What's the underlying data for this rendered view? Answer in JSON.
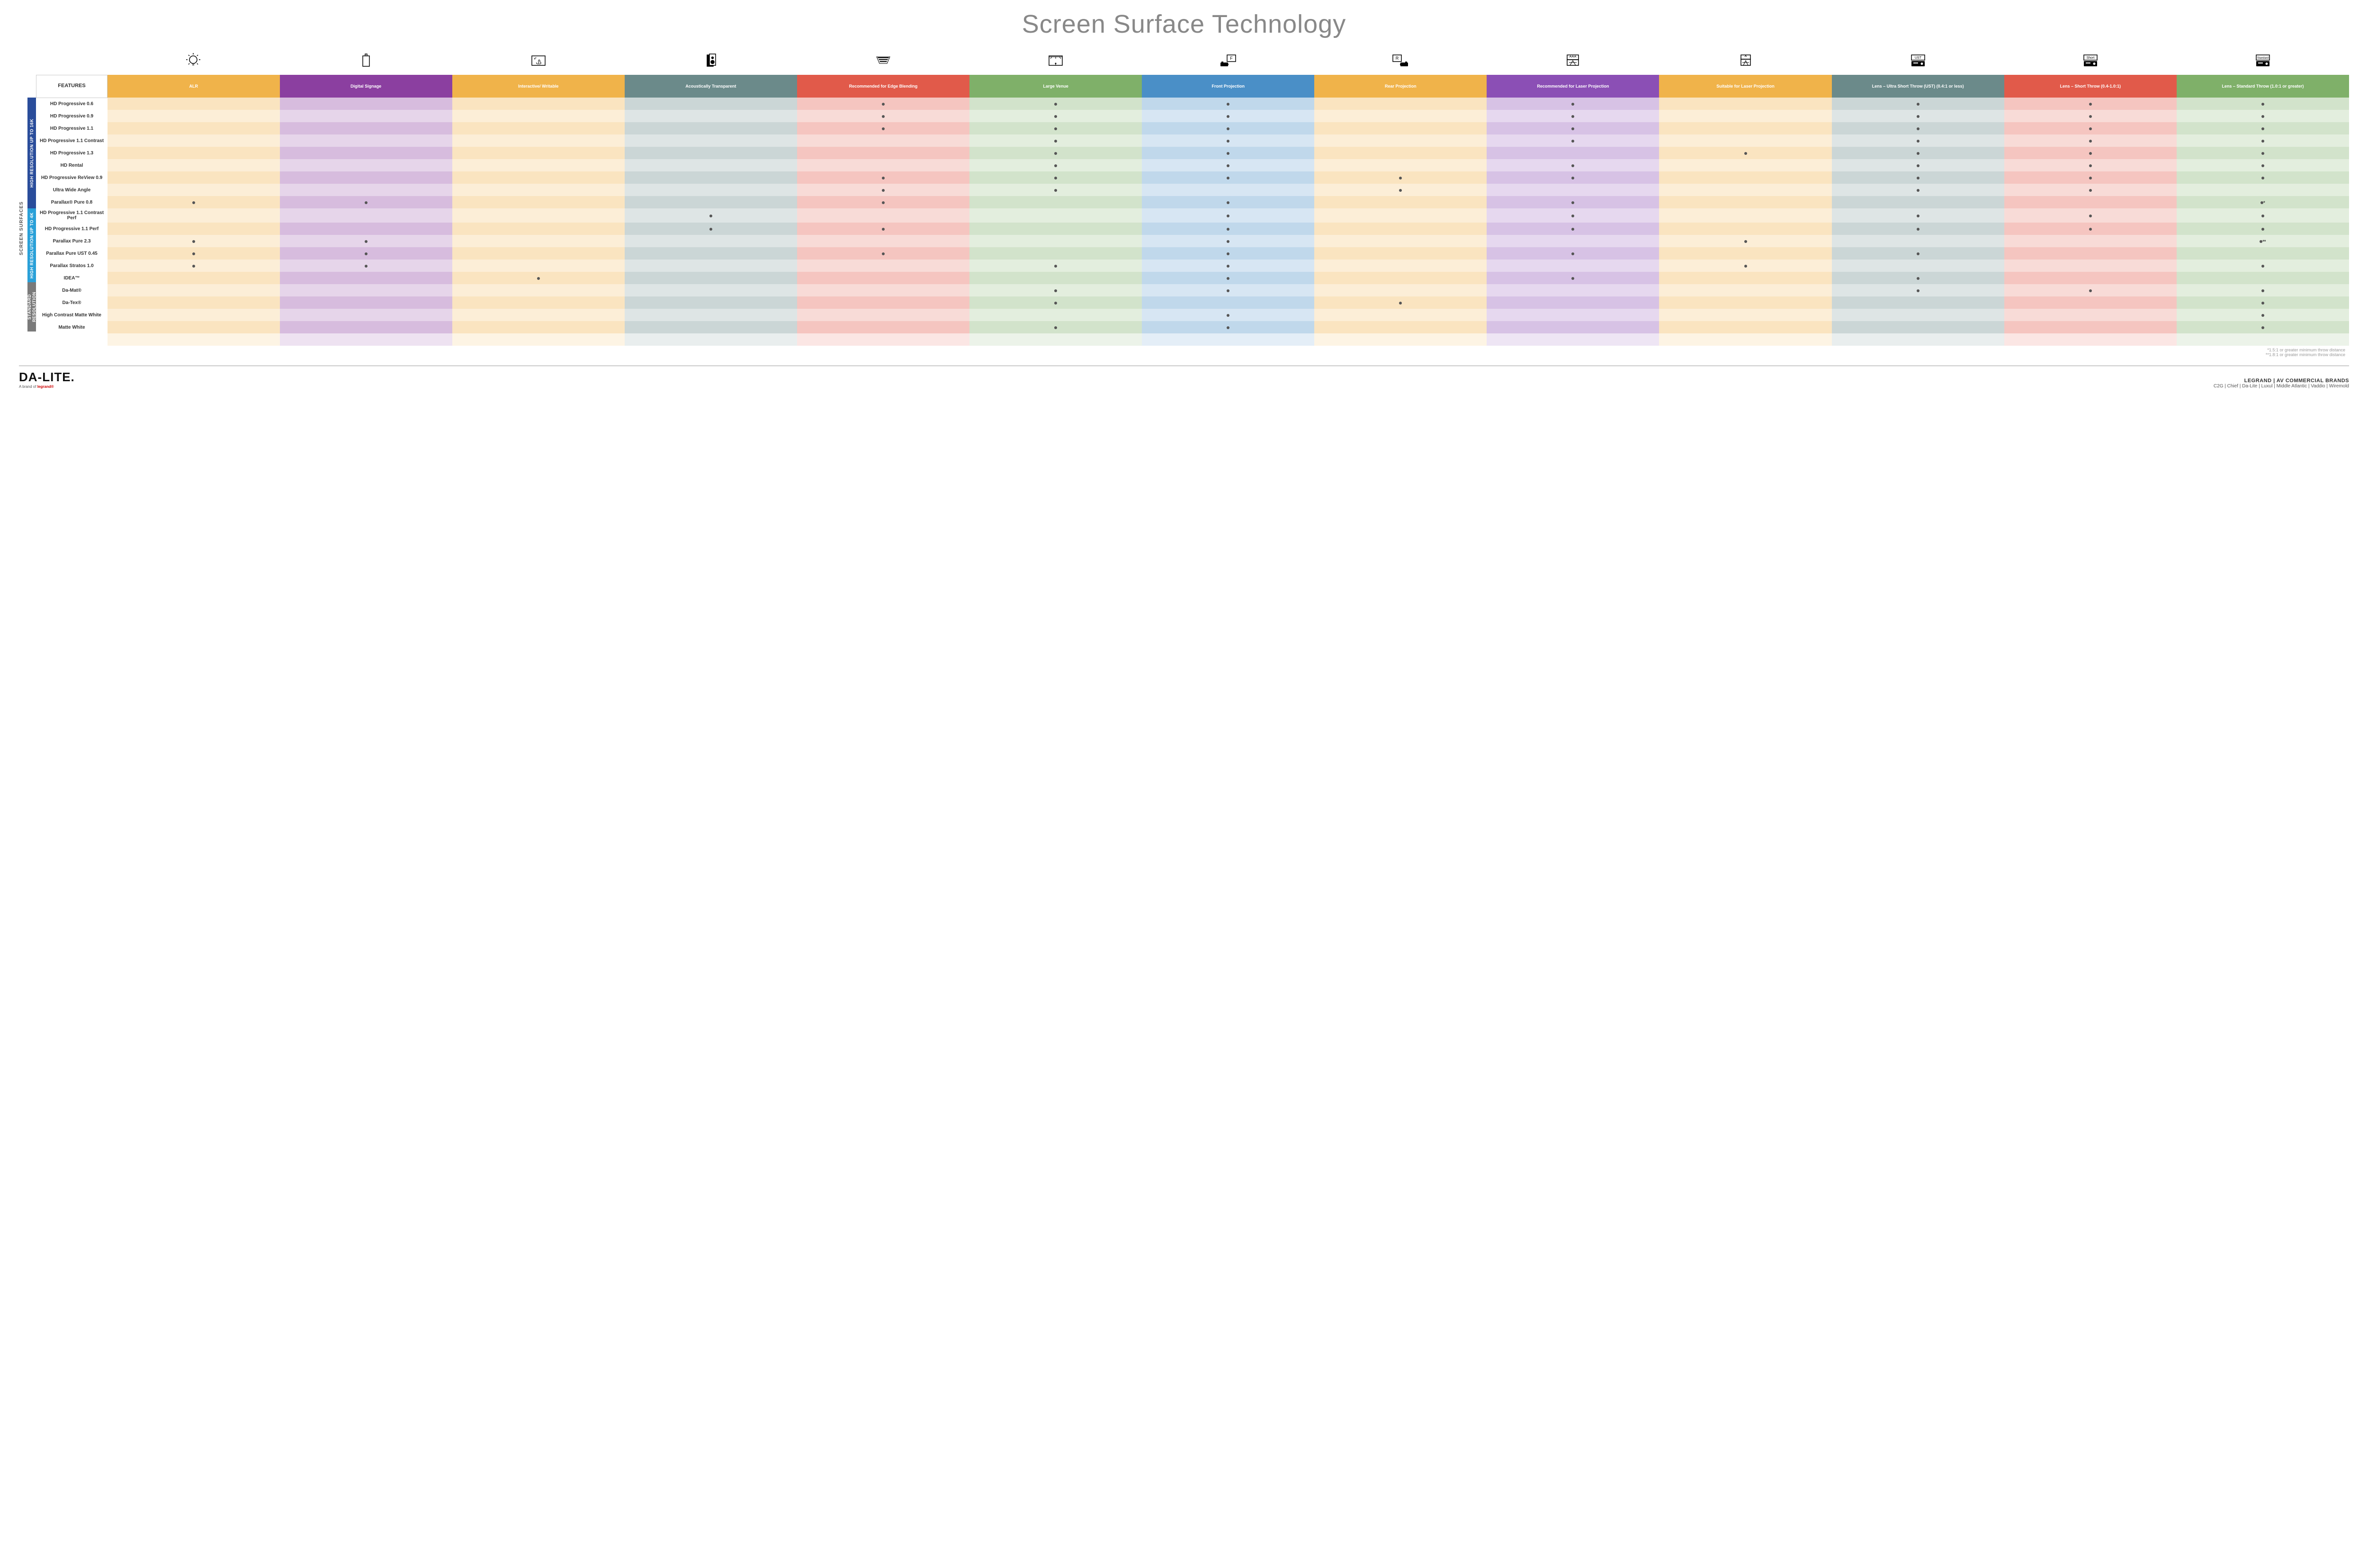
{
  "title": "Screen Surface Technology",
  "colors": {
    "columns": [
      "#f0b34a",
      "#8b3fa0",
      "#f0b34a",
      "#6b8a8a",
      "#e15a4a",
      "#7fb069",
      "#4a8fc7",
      "#f0b34a",
      "#8b4fb5",
      "#f0b34a",
      "#6b8a8a",
      "#e15a4a",
      "#7fb069"
    ],
    "groups": [
      "#2a4d9b",
      "#2aa0d8",
      "#7a7a7a"
    ],
    "tint_alpha_even": 0.35,
    "tint_alpha_odd": 0.22,
    "dot": "#555555"
  },
  "columns": [
    {
      "key": "alr",
      "label": "ALR"
    },
    {
      "key": "signage",
      "label": "Digital Signage"
    },
    {
      "key": "writable",
      "label": "Interactive/ Writable"
    },
    {
      "key": "acoustic",
      "label": "Acoustically Transparent"
    },
    {
      "key": "edge",
      "label": "Recommended for Edge Blending"
    },
    {
      "key": "large",
      "label": "Large Venue"
    },
    {
      "key": "front",
      "label": "Front Projection"
    },
    {
      "key": "rear",
      "label": "Rear Projection"
    },
    {
      "key": "laser_rec",
      "label": "Recommended for Laser Projection"
    },
    {
      "key": "laser_suit",
      "label": "Suitable for Laser Projection"
    },
    {
      "key": "ust",
      "label": "Lens – Ultra Short Throw (UST) (0.4:1 or less)"
    },
    {
      "key": "short",
      "label": "Lens – Short Throw (0.4-1.0:1)"
    },
    {
      "key": "std",
      "label": "Lens – Standard Throw (1.0:1 or greater)"
    }
  ],
  "features_heading": "FEATURES",
  "side_label": "SCREEN SURFACES",
  "groups": [
    {
      "label": "HIGH RESOLUTION UP TO 16K",
      "rows": 9
    },
    {
      "label": "HIGH RESOLUTION UP TO 4K",
      "rows": 6
    },
    {
      "label": "STANDARD RESOLUTION",
      "rows": 4
    }
  ],
  "rows": [
    {
      "label": "HD Progressive 0.6",
      "dots": {
        "edge": "•",
        "large": "•",
        "front": "•",
        "laser_rec": "•",
        "ust": "•",
        "short": "•",
        "std": "•"
      }
    },
    {
      "label": "HD Progressive 0.9",
      "dots": {
        "edge": "•",
        "large": "•",
        "front": "•",
        "laser_rec": "•",
        "ust": "•",
        "short": "•",
        "std": "•"
      }
    },
    {
      "label": "HD Progressive 1.1",
      "dots": {
        "edge": "•",
        "large": "•",
        "front": "•",
        "laser_rec": "•",
        "ust": "•",
        "short": "•",
        "std": "•"
      }
    },
    {
      "label": "HD Progressive 1.1 Contrast",
      "dots": {
        "large": "•",
        "front": "•",
        "laser_rec": "•",
        "ust": "•",
        "short": "•",
        "std": "•"
      }
    },
    {
      "label": "HD Progressive 1.3",
      "dots": {
        "large": "•",
        "front": "•",
        "laser_suit": "•",
        "ust": "•",
        "short": "•",
        "std": "•"
      }
    },
    {
      "label": "HD Rental",
      "dots": {
        "large": "•",
        "front": "•",
        "laser_rec": "•",
        "ust": "•",
        "short": "•",
        "std": "•"
      }
    },
    {
      "label": "HD Progressive ReView 0.9",
      "dots": {
        "edge": "•",
        "large": "•",
        "front": "•",
        "rear": "•",
        "laser_rec": "•",
        "ust": "•",
        "short": "•",
        "std": "•"
      }
    },
    {
      "label": "Ultra Wide Angle",
      "dots": {
        "edge": "•",
        "large": "•",
        "rear": "•",
        "ust": "•",
        "short": "•"
      }
    },
    {
      "label": "Parallax® Pure 0.8",
      "dots": {
        "alr": "•",
        "signage": "•",
        "edge": "•",
        "front": "•",
        "laser_rec": "•",
        "std": "•*"
      }
    },
    {
      "label": "HD Progressive 1.1 Contrast Perf",
      "dots": {
        "acoustic": "•",
        "front": "•",
        "laser_rec": "•",
        "ust": "•",
        "short": "•",
        "std": "•"
      }
    },
    {
      "label": "HD Progressive 1.1 Perf",
      "dots": {
        "acoustic": "•",
        "edge": "•",
        "front": "•",
        "laser_rec": "•",
        "ust": "•",
        "short": "•",
        "std": "•"
      }
    },
    {
      "label": "Parallax Pure 2.3",
      "dots": {
        "alr": "•",
        "signage": "•",
        "front": "•",
        "laser_suit": "•",
        "std": "•**"
      }
    },
    {
      "label": "Parallax Pure UST 0.45",
      "dots": {
        "alr": "•",
        "signage": "•",
        "edge": "•",
        "front": "•",
        "laser_rec": "•",
        "ust": "•"
      }
    },
    {
      "label": "Parallax Stratos 1.0",
      "dots": {
        "alr": "•",
        "signage": "•",
        "large": "•",
        "front": "•",
        "laser_suit": "•",
        "std": "•"
      }
    },
    {
      "label": "IDEA™",
      "dots": {
        "writable": "•",
        "front": "•",
        "laser_rec": "•",
        "ust": "•"
      }
    },
    {
      "label": "Da-Mat®",
      "dots": {
        "large": "•",
        "front": "•",
        "ust": "•",
        "short": "•",
        "std": "•"
      }
    },
    {
      "label": "Da-Tex®",
      "dots": {
        "large": "•",
        "rear": "•",
        "std": "•"
      }
    },
    {
      "label": "High Contrast Matte White",
      "dots": {
        "front": "•",
        "std": "•"
      }
    },
    {
      "label": "Matte White",
      "dots": {
        "large": "•",
        "front": "•",
        "std": "•"
      }
    }
  ],
  "footnotes": [
    "*1.5:1 or greater minimum throw distance",
    "**1.8:1 or greater minimum throw distance"
  ],
  "footer": {
    "logo_main": "DA-LITE.",
    "logo_sub_pre": "A brand of ",
    "logo_sub_brand": "legrand®",
    "brands_top": "LEGRAND | AV COMMERCIAL BRANDS",
    "brands_list": "C2G  |  Chief  |  Da-Lite  |  Luxul  |  Middle Atlantic  |  Vaddio  |  Wiremold"
  },
  "icons": [
    "bulb",
    "signage",
    "touch",
    "speaker",
    "blend",
    "venue",
    "front",
    "rear",
    "laser_rec",
    "laser_suit",
    "ust",
    "short",
    "standard"
  ]
}
